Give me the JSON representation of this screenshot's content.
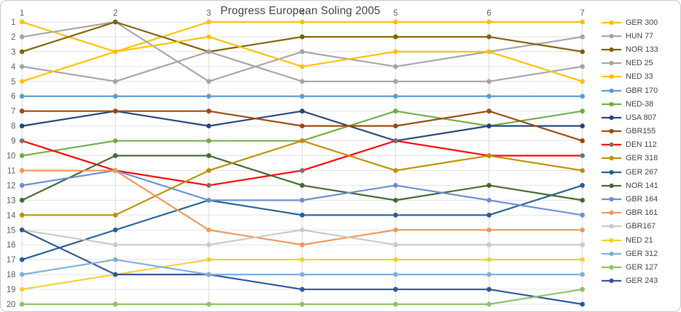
{
  "chart_data": {
    "type": "line",
    "title": "Progress European Soling 2005",
    "legend_position": "right",
    "grid": true,
    "x_axis": {
      "position": "top",
      "ticks": [
        "1",
        "2",
        "3",
        "4",
        "5",
        "6",
        "7"
      ]
    },
    "y_axis": {
      "inverted": true,
      "range": [
        1,
        20
      ],
      "ticks": [
        "1",
        "2",
        "3",
        "4",
        "5",
        "6",
        "7",
        "8",
        "9",
        "10",
        "11",
        "12",
        "13",
        "14",
        "15",
        "16",
        "17",
        "18",
        "19",
        "20"
      ]
    },
    "series": [
      {
        "name": "GER 300",
        "line_color": "#FFC000",
        "marker_color": "#FFC000",
        "positions": [
          1,
          3,
          1,
          1,
          1,
          1,
          1
        ]
      },
      {
        "name": "HUN 77",
        "line_color": "#A5A5A5",
        "marker_color": "#A5A5A5",
        "positions": [
          2,
          1,
          5,
          3,
          4,
          3,
          2
        ]
      },
      {
        "name": "NOR 133",
        "line_color": "#7F6000",
        "marker_color": "#7F6000",
        "positions": [
          3,
          1,
          3,
          2,
          2,
          2,
          3
        ]
      },
      {
        "name": "NED 25",
        "line_color": "#A5A5A5",
        "marker_color": "#A5A5A5",
        "positions": [
          4,
          5,
          3,
          5,
          5,
          5,
          4
        ]
      },
      {
        "name": "NED 33",
        "line_color": "#FFC000",
        "marker_color": "#FFC000",
        "positions": [
          5,
          3,
          2,
          4,
          3,
          3,
          5
        ]
      },
      {
        "name": "GBR 170",
        "line_color": "#5B9BD5",
        "marker_color": "#5B9BD5",
        "positions": [
          6,
          6,
          6,
          6,
          6,
          6,
          6
        ]
      },
      {
        "name": "NED-38",
        "line_color": "#70AD47",
        "marker_color": "#70AD47",
        "positions": [
          10,
          9,
          9,
          9,
          7,
          8,
          7
        ]
      },
      {
        "name": "USA 807",
        "line_color": "#264478",
        "marker_color": "#264478",
        "positions": [
          8,
          7,
          8,
          7,
          9,
          8,
          8
        ]
      },
      {
        "name": "GBR155",
        "line_color": "#9E480E",
        "marker_color": "#9E480E",
        "positions": [
          7,
          7,
          7,
          8,
          8,
          7,
          9
        ]
      },
      {
        "name": "DEN 112",
        "line_color": "#FF0000",
        "marker_color": "#757171",
        "positions": [
          9,
          11,
          12,
          11,
          9,
          10,
          10
        ]
      },
      {
        "name": "GER 318",
        "line_color": "#BF8F00",
        "marker_color": "#BF8F00",
        "positions": [
          14,
          14,
          11,
          9,
          11,
          10,
          11
        ]
      },
      {
        "name": "GER 267",
        "line_color": "#255E91",
        "marker_color": "#255E91",
        "positions": [
          17,
          15,
          13,
          14,
          14,
          14,
          12
        ]
      },
      {
        "name": "NOR 141",
        "line_color": "#43682B",
        "marker_color": "#43682B",
        "positions": [
          13,
          10,
          10,
          12,
          13,
          12,
          13
        ]
      },
      {
        "name": "GBR 164",
        "line_color": "#698ED0",
        "marker_color": "#698ED0",
        "positions": [
          12,
          11,
          13,
          13,
          12,
          13,
          14
        ]
      },
      {
        "name": "GBR 161",
        "line_color": "#F1975A",
        "marker_color": "#F1975A",
        "positions": [
          11,
          11,
          15,
          16,
          15,
          15,
          15
        ]
      },
      {
        "name": "GBR167",
        "line_color": "#C9C9C9",
        "marker_color": "#C9C9C9",
        "positions": [
          15,
          16,
          16,
          15,
          16,
          16,
          16
        ]
      },
      {
        "name": "NED 21",
        "line_color": "#FFCD33",
        "marker_color": "#FFCD33",
        "positions": [
          19,
          18,
          17,
          17,
          17,
          17,
          17
        ]
      },
      {
        "name": "GER 312",
        "line_color": "#7CAFDD",
        "marker_color": "#7CAFDD",
        "positions": [
          18,
          17,
          18,
          18,
          18,
          18,
          18
        ]
      },
      {
        "name": "GER 127",
        "line_color": "#8CC168",
        "marker_color": "#8CC168",
        "positions": [
          20,
          20,
          20,
          20,
          20,
          20,
          19
        ]
      },
      {
        "name": "GER 243",
        "line_color": "#2F5597",
        "marker_color": "#2F5597",
        "positions": [
          15,
          18,
          18,
          19,
          19,
          19,
          20
        ]
      }
    ],
    "draw_order": [
      0,
      1,
      2,
      3,
      4,
      5,
      6,
      7,
      8,
      9,
      11,
      12,
      13,
      10,
      14,
      15,
      16,
      19,
      17,
      18
    ],
    "style": {
      "grid_color_v": "#d9d9d9",
      "grid_color_h": "#e2e2e2",
      "tick_color": "#595959",
      "line_width": 2.2,
      "marker_radius": 3.4
    }
  }
}
